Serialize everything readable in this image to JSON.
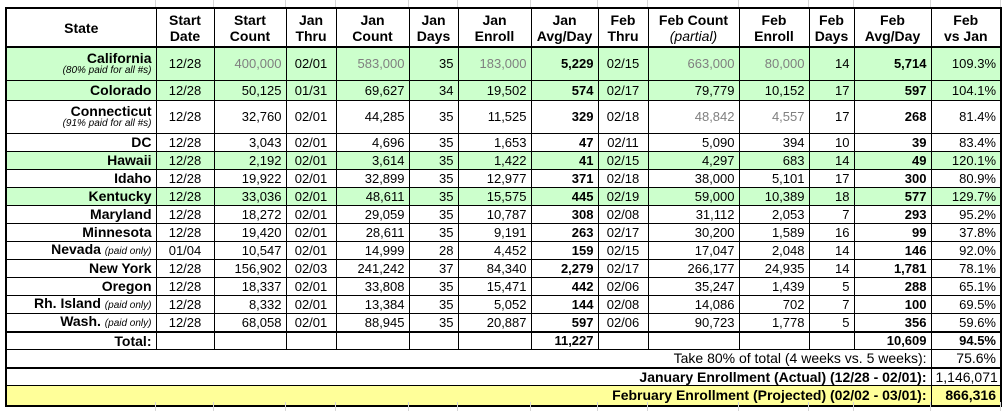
{
  "colors": {
    "row_highlight_green": "#ccffcc",
    "summary_highlight_yellow": "#ffff99",
    "estimate_text_gray": "#7f7f7f",
    "border_black": "#000000",
    "gridline_gray": "#d6d6d6"
  },
  "table": {
    "columns": [
      {
        "key": "state",
        "line1": "State",
        "line2": ""
      },
      {
        "key": "start_date",
        "line1": "Start",
        "line2": "Date"
      },
      {
        "key": "start_count",
        "line1": "Start",
        "line2": "Count"
      },
      {
        "key": "jan_thru",
        "line1": "Jan",
        "line2": "Thru"
      },
      {
        "key": "jan_count",
        "line1": "Jan",
        "line2": "Count"
      },
      {
        "key": "jan_days",
        "line1": "Jan",
        "line2": "Days"
      },
      {
        "key": "jan_enroll",
        "line1": "Jan",
        "line2": "Enroll"
      },
      {
        "key": "jan_avg_day",
        "line1": "Jan",
        "line2": "Avg/Day"
      },
      {
        "key": "feb_thru",
        "line1": "Feb",
        "line2": "Thru"
      },
      {
        "key": "feb_count",
        "line1": "Feb Count",
        "line2": "(partial)",
        "italic2": true
      },
      {
        "key": "feb_enroll",
        "line1": "Feb",
        "line2": "Enroll"
      },
      {
        "key": "feb_days",
        "line1": "Feb",
        "line2": "Days"
      },
      {
        "key": "feb_avg_day",
        "line1": "Feb",
        "line2": "Avg/Day"
      },
      {
        "key": "feb_vs_jan",
        "line1": "Feb",
        "line2": "vs Jan"
      }
    ],
    "rows": [
      {
        "state": "California",
        "note": "(80% paid for all #s)",
        "note_position": "below",
        "size": "tall",
        "highlight": true,
        "start_date": "12/28",
        "start_count": "400,000",
        "jan_thru": "02/01",
        "jan_count": "583,000",
        "jan_days": "35",
        "jan_enroll": "183,000",
        "jan_avg_day": "5,229",
        "feb_thru": "02/15",
        "feb_count": "663,000",
        "feb_enroll": "80,000",
        "feb_days": "14",
        "feb_avg_day": "5,714",
        "feb_vs_jan": "109.3%",
        "gray_cells": [
          "start_count",
          "jan_count",
          "jan_enroll",
          "feb_count",
          "feb_enroll"
        ]
      },
      {
        "state": "Colorado",
        "size": "med",
        "highlight": true,
        "start_date": "12/28",
        "start_count": "50,125",
        "jan_thru": "01/31",
        "jan_count": "69,627",
        "jan_days": "34",
        "jan_enroll": "19,502",
        "jan_avg_day": "574",
        "feb_thru": "02/17",
        "feb_count": "79,779",
        "feb_enroll": "10,152",
        "feb_days": "17",
        "feb_avg_day": "597",
        "feb_vs_jan": "104.1%",
        "gray_cells": []
      },
      {
        "state": "Connecticut",
        "note": "(91% paid for all #s)",
        "note_position": "below",
        "size": "tall",
        "highlight": false,
        "start_date": "12/28",
        "start_count": "32,760",
        "jan_thru": "02/01",
        "jan_count": "44,285",
        "jan_days": "35",
        "jan_enroll": "11,525",
        "jan_avg_day": "329",
        "feb_thru": "02/18",
        "feb_count": "48,842",
        "feb_enroll": "4,557",
        "feb_days": "17",
        "feb_avg_day": "268",
        "feb_vs_jan": "81.4%",
        "gray_cells": [
          "feb_count",
          "feb_enroll"
        ]
      },
      {
        "state": "DC",
        "size": "std",
        "highlight": false,
        "start_date": "12/28",
        "start_count": "3,043",
        "jan_thru": "02/01",
        "jan_count": "4,696",
        "jan_days": "35",
        "jan_enroll": "1,653",
        "jan_avg_day": "47",
        "feb_thru": "02/11",
        "feb_count": "5,090",
        "feb_enroll": "394",
        "feb_days": "10",
        "feb_avg_day": "39",
        "feb_vs_jan": "83.4%",
        "gray_cells": []
      },
      {
        "state": "Hawaii",
        "size": "std",
        "highlight": true,
        "start_date": "12/28",
        "start_count": "2,192",
        "jan_thru": "02/01",
        "jan_count": "3,614",
        "jan_days": "35",
        "jan_enroll": "1,422",
        "jan_avg_day": "41",
        "feb_thru": "02/15",
        "feb_count": "4,297",
        "feb_enroll": "683",
        "feb_days": "14",
        "feb_avg_day": "49",
        "feb_vs_jan": "120.1%",
        "gray_cells": []
      },
      {
        "state": "Idaho",
        "size": "std",
        "highlight": false,
        "start_date": "12/28",
        "start_count": "19,922",
        "jan_thru": "02/01",
        "jan_count": "32,899",
        "jan_days": "35",
        "jan_enroll": "12,977",
        "jan_avg_day": "371",
        "feb_thru": "02/18",
        "feb_count": "38,000",
        "feb_enroll": "5,101",
        "feb_days": "17",
        "feb_avg_day": "300",
        "feb_vs_jan": "80.9%",
        "gray_cells": []
      },
      {
        "state": "Kentucky",
        "size": "std",
        "highlight": true,
        "start_date": "12/28",
        "start_count": "33,036",
        "jan_thru": "02/01",
        "jan_count": "48,611",
        "jan_days": "35",
        "jan_enroll": "15,575",
        "jan_avg_day": "445",
        "feb_thru": "02/19",
        "feb_count": "59,000",
        "feb_enroll": "10,389",
        "feb_days": "18",
        "feb_avg_day": "577",
        "feb_vs_jan": "129.7%",
        "gray_cells": []
      },
      {
        "state": "Maryland",
        "size": "std",
        "highlight": false,
        "start_date": "12/28",
        "start_count": "18,272",
        "jan_thru": "02/01",
        "jan_count": "29,059",
        "jan_days": "35",
        "jan_enroll": "10,787",
        "jan_avg_day": "308",
        "feb_thru": "02/08",
        "feb_count": "31,112",
        "feb_enroll": "2,053",
        "feb_days": "7",
        "feb_avg_day": "293",
        "feb_vs_jan": "95.2%",
        "gray_cells": []
      },
      {
        "state": "Minnesota",
        "size": "std",
        "highlight": false,
        "start_date": "12/28",
        "start_count": "19,420",
        "jan_thru": "02/01",
        "jan_count": "28,611",
        "jan_days": "35",
        "jan_enroll": "9,191",
        "jan_avg_day": "263",
        "feb_thru": "02/17",
        "feb_count": "30,200",
        "feb_enroll": "1,589",
        "feb_days": "16",
        "feb_avg_day": "99",
        "feb_vs_jan": "37.8%",
        "gray_cells": []
      },
      {
        "state": "Nevada",
        "note": "(paid only)",
        "note_position": "inline",
        "size": "std",
        "highlight": false,
        "start_date": "01/04",
        "start_count": "10,547",
        "jan_thru": "02/01",
        "jan_count": "14,999",
        "jan_days": "28",
        "jan_enroll": "4,452",
        "jan_avg_day": "159",
        "feb_thru": "02/15",
        "feb_count": "17,047",
        "feb_enroll": "2,048",
        "feb_days": "14",
        "feb_avg_day": "146",
        "feb_vs_jan": "92.0%",
        "gray_cells": []
      },
      {
        "state": "New York",
        "size": "std",
        "highlight": false,
        "start_date": "12/28",
        "start_count": "156,902",
        "jan_thru": "02/03",
        "jan_count": "241,242",
        "jan_days": "37",
        "jan_enroll": "84,340",
        "jan_avg_day": "2,279",
        "feb_thru": "02/17",
        "feb_count": "266,177",
        "feb_enroll": "24,935",
        "feb_days": "14",
        "feb_avg_day": "1,781",
        "feb_vs_jan": "78.1%",
        "gray_cells": []
      },
      {
        "state": "Oregon",
        "size": "std",
        "highlight": false,
        "start_date": "12/28",
        "start_count": "18,337",
        "jan_thru": "02/01",
        "jan_count": "33,808",
        "jan_days": "35",
        "jan_enroll": "15,471",
        "jan_avg_day": "442",
        "feb_thru": "02/06",
        "feb_count": "35,247",
        "feb_enroll": "1,439",
        "feb_days": "5",
        "feb_avg_day": "288",
        "feb_vs_jan": "65.1%",
        "gray_cells": []
      },
      {
        "state": "Rh. Island",
        "note": "(paid only)",
        "note_position": "inline",
        "size": "std",
        "highlight": false,
        "start_date": "12/28",
        "start_count": "8,332",
        "jan_thru": "02/01",
        "jan_count": "13,384",
        "jan_days": "35",
        "jan_enroll": "5,052",
        "jan_avg_day": "144",
        "feb_thru": "02/08",
        "feb_count": "14,086",
        "feb_enroll": "702",
        "feb_days": "7",
        "feb_avg_day": "100",
        "feb_vs_jan": "69.5%",
        "gray_cells": []
      },
      {
        "state": "Wash.",
        "note": "(paid only)",
        "note_position": "inline",
        "size": "std",
        "highlight": false,
        "start_date": "12/28",
        "start_count": "68,058",
        "jan_thru": "02/01",
        "jan_count": "88,945",
        "jan_days": "35",
        "jan_enroll": "20,887",
        "jan_avg_day": "597",
        "feb_thru": "02/06",
        "feb_count": "90,723",
        "feb_enroll": "1,778",
        "feb_days": "5",
        "feb_avg_day": "356",
        "feb_vs_jan": "59.6%",
        "gray_cells": []
      }
    ],
    "total_row": {
      "label": "Total:",
      "jan_avg_day": "11,227",
      "feb_avg_day": "10,609",
      "feb_vs_jan": "94.5%"
    },
    "summary_rows": [
      {
        "label": "Take 80% of total (4 weeks vs. 5 weeks):",
        "value": "75.6%",
        "label_bold": false,
        "value_bold": false,
        "highlight": false,
        "thick_top": false
      },
      {
        "label": "January Enrollment (Actual) (12/28 - 02/01):",
        "value": "1,146,071",
        "label_bold": true,
        "value_bold": false,
        "highlight": false,
        "thick_top": true
      },
      {
        "label": "February Enrollment (Projected) (02/02 - 03/01):",
        "value": "866,316",
        "label_bold": true,
        "value_bold": true,
        "highlight": true,
        "thick_top": false
      }
    ]
  }
}
